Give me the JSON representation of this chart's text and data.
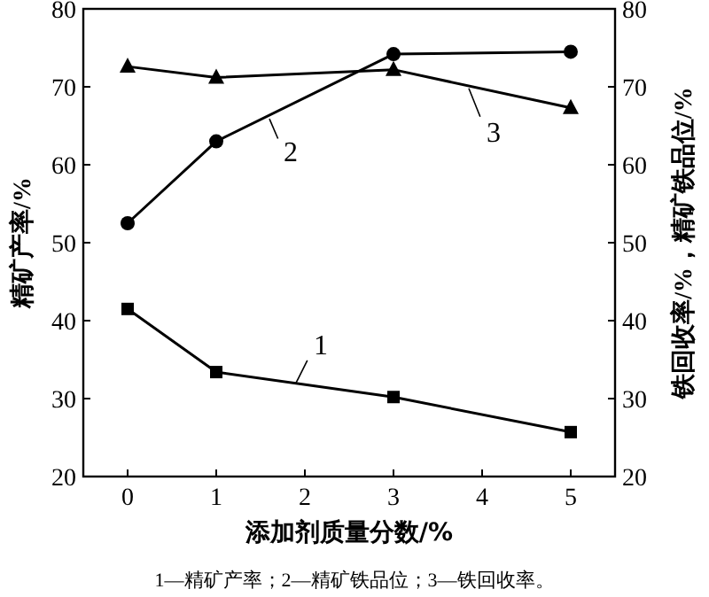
{
  "chart_data": {
    "type": "line",
    "xlabel": "添加剂质量分数/%",
    "ylabel": "精矿产率/%",
    "y2label": "铁回收率/%，精矿铁品位/%",
    "x": [
      0,
      1,
      3,
      5
    ],
    "xlim": [
      -0.5,
      5.5
    ],
    "xticks": [
      0,
      1,
      2,
      3,
      4,
      5
    ],
    "ylim": [
      20,
      80
    ],
    "yticks": [
      20,
      30,
      40,
      50,
      60,
      70,
      80
    ],
    "y2lim": [
      20,
      80
    ],
    "y2ticks": [
      20,
      30,
      40,
      50,
      60,
      70,
      80
    ],
    "grid": false,
    "line_style": "solid",
    "series": [
      {
        "color": "#000000",
        "marker": "square",
        "values": [
          41.5,
          33.4,
          30.2,
          25.7
        ]
      },
      {
        "color": "#000000",
        "marker": "circle",
        "values": [
          52.5,
          63.0,
          74.2,
          74.5
        ]
      },
      {
        "color": "#000000",
        "marker": "triangle",
        "values": [
          72.6,
          71.2,
          72.2,
          67.3
        ]
      }
    ],
    "annotations": [
      {
        "text": "1",
        "x": 1.9,
        "y": 32.0
      },
      {
        "text": "2",
        "x": 1.6,
        "y": 65.9
      },
      {
        "text": "3",
        "x": 3.85,
        "y": 69.8
      },
      "1—精矿产率；2—精矿铁品位；3—铁回收率。"
    ]
  }
}
